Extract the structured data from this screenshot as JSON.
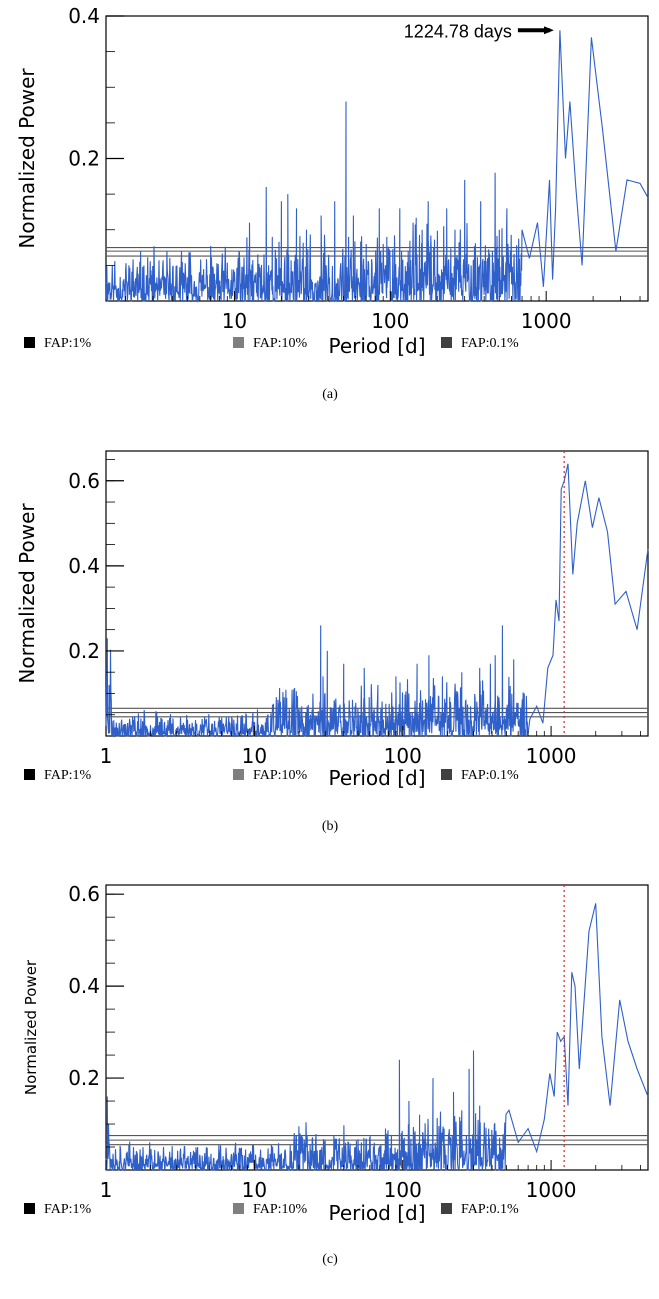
{
  "colors": {
    "series": "#2f5fc8",
    "fap_line": "#555555",
    "marker": "#d62728",
    "fap_1": "#000000",
    "fap_10": "#7f7f7f",
    "fap_01": "#404040"
  },
  "chart_data": [
    {
      "type": "line",
      "panel": "a",
      "caption": "(a)",
      "xlabel": "Period [d]",
      "ylabel": "Normalized Power",
      "xscale": "log",
      "xlim": [
        1.5,
        4500
      ],
      "ylim": [
        0,
        0.4
      ],
      "xticks": [
        10,
        100,
        1000
      ],
      "xtick_labels": [
        "10",
        "100",
        "1000"
      ],
      "yticks": [
        0.2,
        0.4
      ],
      "ytick_labels": [
        "0.2",
        "0.4"
      ],
      "fap_levels": [
        0.063,
        0.07,
        0.075
      ],
      "legend": [
        "FAP:1%",
        "FAP:10%",
        "FAP:0.1%"
      ],
      "annotation": {
        "text": "1224.78 days",
        "x": 1224.78,
        "y": 0.38
      },
      "marker_period": null,
      "noise": {
        "seed": 11,
        "segments": [
          [
            1.5,
            10,
            0.055,
            0.035
          ],
          [
            10,
            60,
            0.07,
            0.06
          ],
          [
            60,
            700,
            0.08,
            0.05
          ]
        ]
      },
      "x": [
        12.5,
        16,
        17.5,
        20,
        22,
        25,
        29,
        36,
        44,
        52,
        54,
        58,
        70,
        85,
        95,
        115,
        140,
        160,
        175,
        200,
        230,
        260,
        300,
        330,
        380,
        420,
        470,
        500,
        560,
        620,
        700,
        780,
        880,
        960,
        1050,
        1100,
        1150,
        1224.78,
        1330,
        1420,
        1550,
        1700,
        1950,
        2300,
        2800,
        3300,
        4000,
        4500
      ],
      "y": [
        0.11,
        0.16,
        0.09,
        0.14,
        0.15,
        0.13,
        0.1,
        0.12,
        0.14,
        0.28,
        0.09,
        0.12,
        0.08,
        0.13,
        0.09,
        0.13,
        0.11,
        0.1,
        0.14,
        0.06,
        0.13,
        0.1,
        0.17,
        0.05,
        0.14,
        0.06,
        0.18,
        0.1,
        0.13,
        0.05,
        0.1,
        0.06,
        0.11,
        0.02,
        0.17,
        0.03,
        0.13,
        0.38,
        0.2,
        0.28,
        0.16,
        0.05,
        0.37,
        0.24,
        0.07,
        0.17,
        0.165,
        0.145
      ]
    },
    {
      "type": "line",
      "panel": "b",
      "caption": "(b)",
      "xlabel": "Period [d]",
      "ylabel": "Normalized Power",
      "xscale": "log",
      "xlim": [
        1,
        4500
      ],
      "ylim": [
        0,
        0.67
      ],
      "xticks": [
        1,
        10,
        100,
        1000
      ],
      "xtick_labels": [
        "1",
        "10",
        "100",
        "1000"
      ],
      "yticks": [
        0.2,
        0.4,
        0.6
      ],
      "ytick_labels": [
        "0.2",
        "0.4",
        "0.6"
      ],
      "fap_levels": [
        0.045,
        0.055,
        0.065
      ],
      "legend": [
        "FAP:1%",
        "FAP:10%",
        "FAP:0.1%"
      ],
      "annotation": null,
      "marker_period": 1224.78,
      "noise": {
        "seed": 23,
        "segments": [
          [
            1,
            1.1,
            0.18,
            0.07
          ],
          [
            1.1,
            13,
            0.045,
            0.035
          ],
          [
            13,
            80,
            0.09,
            0.07
          ],
          [
            80,
            700,
            0.1,
            0.06
          ]
        ]
      },
      "x": [
        1.02,
        1.05,
        28,
        29,
        31,
        40,
        55,
        68,
        90,
        110,
        125,
        150,
        160,
        185,
        210,
        250,
        290,
        330,
        360,
        390,
        420,
        470,
        520,
        560,
        600,
        660,
        720,
        800,
        880,
        950,
        1030,
        1080,
        1130,
        1170,
        1224.78,
        1300,
        1400,
        1500,
        1700,
        1900,
        2100,
        2400,
        2700,
        3200,
        3800,
        4500
      ],
      "y": [
        0.23,
        0.12,
        0.26,
        0.14,
        0.2,
        0.17,
        0.16,
        0.12,
        0.14,
        0.1,
        0.17,
        0.19,
        0.05,
        0.14,
        0.08,
        0.15,
        0.03,
        0.16,
        0.06,
        0.17,
        0.19,
        0.26,
        0.04,
        0.18,
        0.03,
        0.1,
        0.04,
        0.07,
        0.03,
        0.16,
        0.19,
        0.32,
        0.27,
        0.58,
        0.6,
        0.64,
        0.38,
        0.5,
        0.6,
        0.49,
        0.56,
        0.48,
        0.31,
        0.34,
        0.25,
        0.44
      ]
    },
    {
      "type": "line",
      "panel": "c",
      "caption": "(c)",
      "xlabel": "Period [d]",
      "ylabel": "Normalized Power",
      "xscale": "log",
      "xlim": [
        1,
        4500
      ],
      "ylim": [
        0,
        0.62
      ],
      "xticks": [
        1,
        10,
        100,
        1000
      ],
      "xtick_labels": [
        "1",
        "10",
        "100",
        "1000"
      ],
      "yticks": [
        0.2,
        0.4,
        0.6
      ],
      "ytick_labels": [
        "0.2",
        "0.4",
        "0.6"
      ],
      "fap_levels": [
        0.055,
        0.065,
        0.075
      ],
      "legend": [
        "FAP:1%",
        "FAP:10%",
        "FAP:0.1%"
      ],
      "annotation": null,
      "marker_period": 1224.78,
      "noise": {
        "seed": 37,
        "segments": [
          [
            1,
            1.08,
            0.12,
            0.05
          ],
          [
            1.08,
            18,
            0.045,
            0.03
          ],
          [
            18,
            90,
            0.08,
            0.06
          ],
          [
            90,
            500,
            0.1,
            0.08
          ]
        ]
      },
      "x": [
        1.02,
        1.04,
        95,
        98,
        110,
        130,
        160,
        190,
        220,
        250,
        280,
        300,
        310,
        330,
        380,
        450,
        520,
        600,
        700,
        800,
        900,
        980,
        1050,
        1100,
        1160,
        1224.78,
        1300,
        1380,
        1450,
        1550,
        1800,
        2000,
        2200,
        2500,
        2900,
        3300,
        3800,
        4500
      ],
      "y": [
        0.16,
        0.1,
        0.24,
        0.08,
        0.15,
        0.12,
        0.2,
        0.09,
        0.17,
        0.13,
        0.22,
        0.26,
        0.12,
        0.14,
        0.09,
        0.07,
        0.13,
        0.06,
        0.09,
        0.04,
        0.11,
        0.21,
        0.16,
        0.3,
        0.28,
        0.29,
        0.14,
        0.43,
        0.4,
        0.22,
        0.52,
        0.58,
        0.29,
        0.14,
        0.37,
        0.28,
        0.22,
        0.16
      ]
    }
  ]
}
